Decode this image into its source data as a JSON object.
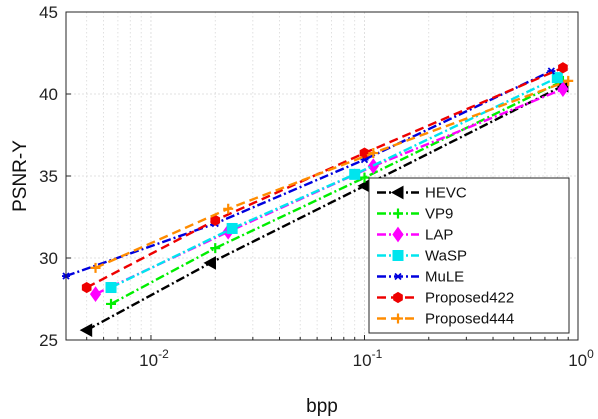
{
  "chart_data": {
    "type": "line",
    "title": "",
    "xlabel": "bpp",
    "ylabel": "PSNR-Y",
    "x_scale": "log",
    "xlim": [
      0.004,
      1
    ],
    "ylim": [
      25,
      45
    ],
    "x_ticks": [
      {
        "value": 0.01,
        "base": "10",
        "exp": "-2"
      },
      {
        "value": 0.1,
        "base": "10",
        "exp": "-1"
      },
      {
        "value": 1,
        "base": "10",
        "exp": "0"
      }
    ],
    "y_ticks": [
      25,
      30,
      35,
      40,
      45
    ],
    "y_tick_labels": [
      "25",
      "30",
      "35",
      "40",
      "45"
    ],
    "grid": true,
    "legend_position": "bottom-right",
    "series": [
      {
        "name": "HEVC",
        "color": "#000000",
        "dash": "dashdot",
        "marker": "triangle-left",
        "points": [
          [
            0.005,
            25.6
          ],
          [
            0.019,
            29.7
          ],
          [
            0.1,
            34.4
          ],
          [
            0.85,
            40.5
          ]
        ]
      },
      {
        "name": "VP9",
        "color": "#00ee00",
        "dash": "dashdot",
        "marker": "plus",
        "points": [
          [
            0.0065,
            27.2
          ],
          [
            0.02,
            30.6
          ],
          [
            0.1,
            34.9
          ],
          [
            0.85,
            40.8
          ]
        ]
      },
      {
        "name": "LAP",
        "color": "#ff00ff",
        "dash": "dashdot",
        "marker": "diamond",
        "points": [
          [
            0.0055,
            27.8
          ],
          [
            0.023,
            31.6
          ],
          [
            0.11,
            35.6
          ],
          [
            0.85,
            40.3
          ]
        ]
      },
      {
        "name": "WaSP",
        "color": "#00e5ee",
        "dash": "dashdot",
        "marker": "square",
        "points": [
          [
            0.0065,
            28.2
          ],
          [
            0.024,
            31.8
          ],
          [
            0.09,
            35.1
          ],
          [
            0.8,
            41.0
          ]
        ]
      },
      {
        "name": "MuLE",
        "color": "#0000dd",
        "dash": "dashdot",
        "marker": "asterisk",
        "points": [
          [
            0.004,
            28.9
          ],
          [
            0.02,
            32.1
          ],
          [
            0.1,
            36.0
          ],
          [
            0.75,
            41.4
          ]
        ]
      },
      {
        "name": "Proposed422",
        "color": "#ee0000",
        "dash": "dashed",
        "marker": "hexagon",
        "points": [
          [
            0.005,
            28.2
          ],
          [
            0.02,
            32.3
          ],
          [
            0.1,
            36.4
          ],
          [
            0.85,
            41.6
          ]
        ]
      },
      {
        "name": "Proposed444",
        "color": "#ff8c00",
        "dash": "dashed",
        "marker": "plus",
        "points": [
          [
            0.0055,
            29.4
          ],
          [
            0.023,
            33.0
          ],
          [
            0.11,
            36.4
          ],
          [
            0.9,
            40.8
          ]
        ]
      }
    ]
  }
}
